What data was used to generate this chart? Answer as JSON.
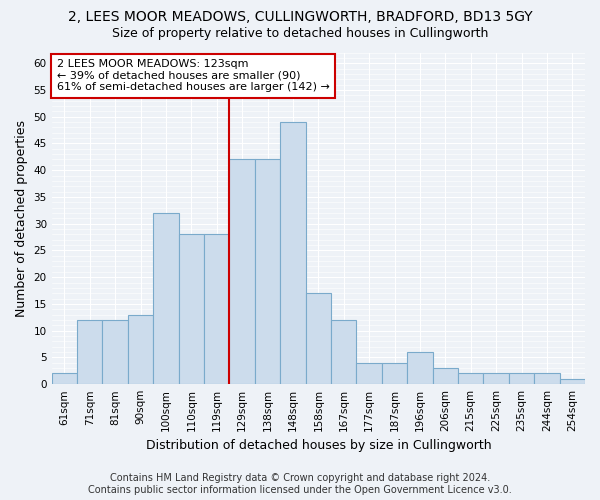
{
  "title_line1": "2, LEES MOOR MEADOWS, CULLINGWORTH, BRADFORD, BD13 5GY",
  "title_line2": "Size of property relative to detached houses in Cullingworth",
  "xlabel": "Distribution of detached houses by size in Cullingworth",
  "ylabel": "Number of detached properties",
  "categories": [
    "61sqm",
    "71sqm",
    "81sqm",
    "90sqm",
    "100sqm",
    "110sqm",
    "119sqm",
    "129sqm",
    "138sqm",
    "148sqm",
    "158sqm",
    "167sqm",
    "177sqm",
    "187sqm",
    "196sqm",
    "206sqm",
    "215sqm",
    "225sqm",
    "235sqm",
    "244sqm",
    "254sqm"
  ],
  "values": [
    2,
    12,
    12,
    13,
    32,
    28,
    28,
    42,
    42,
    49,
    17,
    12,
    4,
    4,
    6,
    3,
    2,
    2,
    2,
    2,
    1
  ],
  "bar_color": "#ccdcec",
  "bar_edge_color": "#7aaacb",
  "vline_x_index": 7,
  "vline_color": "#cc0000",
  "annotation_line1": "2 LEES MOOR MEADOWS: 123sqm",
  "annotation_line2": "← 39% of detached houses are smaller (90)",
  "annotation_line3": "61% of semi-detached houses are larger (142) →",
  "annotation_box_color": "#ffffff",
  "annotation_box_edge": "#cc0000",
  "ylim": [
    0,
    62
  ],
  "yticks": [
    0,
    5,
    10,
    15,
    20,
    25,
    30,
    35,
    40,
    45,
    50,
    55,
    60
  ],
  "footer_line1": "Contains HM Land Registry data © Crown copyright and database right 2024.",
  "footer_line2": "Contains public sector information licensed under the Open Government Licence v3.0.",
  "background_color": "#eef2f7",
  "plot_bg_color": "#eef2f7",
  "title_fontsize": 10,
  "subtitle_fontsize": 9,
  "axis_label_fontsize": 9,
  "tick_fontsize": 7.5,
  "footer_fontsize": 7,
  "annotation_fontsize": 8
}
